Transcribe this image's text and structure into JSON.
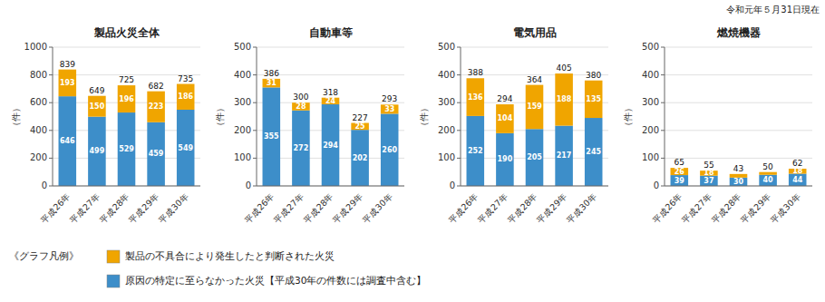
{
  "chart_data": [
    {
      "type": "bar",
      "stacked": true,
      "data_labels": true,
      "grid": true,
      "title": "製品火災全体",
      "ylabel": "（件）",
      "ylim": [
        0,
        1000
      ],
      "yticks": [
        0,
        200,
        400,
        600,
        800,
        1000
      ],
      "categories": [
        "平成26年",
        "平成27年",
        "平成28年",
        "平成29年",
        "平成30年"
      ],
      "series": [
        {
          "name": "原因の特定に至らなかった火災【平成30年の件数には調査中含む】",
          "color": "#3D8EC9",
          "values": [
            646,
            499,
            529,
            459,
            549
          ]
        },
        {
          "name": "製品の不具合により発生したと判断された火災",
          "color": "#F0A500",
          "values": [
            193,
            150,
            196,
            223,
            186
          ]
        }
      ],
      "totals": [
        839,
        649,
        725,
        682,
        735
      ],
      "annotations": [
        "令和元年５月31日現在",
        "《グラフ凡例》"
      ]
    },
    {
      "type": "bar",
      "stacked": true,
      "data_labels": true,
      "grid": true,
      "title": "自動車等",
      "ylabel": "（件）",
      "ylim": [
        0,
        500
      ],
      "yticks": [
        0,
        100,
        200,
        300,
        400,
        500
      ],
      "categories": [
        "平成26年",
        "平成27年",
        "平成28年",
        "平成29年",
        "平成30年"
      ],
      "series": [
        {
          "color": "#3D8EC9",
          "values": [
            355,
            272,
            294,
            202,
            260
          ]
        },
        {
          "color": "#F0A500",
          "values": [
            31,
            28,
            24,
            25,
            33
          ]
        }
      ],
      "totals": [
        386,
        300,
        318,
        227,
        293
      ]
    },
    {
      "type": "bar",
      "stacked": true,
      "data_labels": true,
      "grid": true,
      "title": "電気用品",
      "ylabel": "（件）",
      "ylim": [
        0,
        500
      ],
      "yticks": [
        0,
        100,
        200,
        300,
        400,
        500
      ],
      "categories": [
        "平成26年",
        "平成27年",
        "平成28年",
        "平成29年",
        "平成30年"
      ],
      "series": [
        {
          "color": "#3D8EC9",
          "values": [
            252,
            190,
            205,
            217,
            245
          ]
        },
        {
          "color": "#F0A500",
          "values": [
            136,
            104,
            159,
            188,
            135
          ]
        }
      ],
      "totals": [
        388,
        294,
        364,
        405,
        380
      ]
    },
    {
      "type": "bar",
      "stacked": true,
      "data_labels": true,
      "grid": true,
      "title": "燃焼機器",
      "ylabel": "（件）",
      "ylim": [
        0,
        500
      ],
      "yticks": [
        0,
        100,
        200,
        300,
        400,
        500
      ],
      "categories": [
        "平成26年",
        "平成27年",
        "平成28年",
        "平成29年",
        "平成30年"
      ],
      "series": [
        {
          "color": "#3D8EC9",
          "values": [
            39,
            37,
            30,
            40,
            44
          ]
        },
        {
          "color": "#F0A500",
          "values": [
            26,
            18,
            13,
            10,
            18
          ],
          "value_labels": [
            "26",
            "18",
            null,
            null,
            "18"
          ]
        }
      ],
      "totals": [
        65,
        55,
        43,
        50,
        62
      ]
    }
  ]
}
